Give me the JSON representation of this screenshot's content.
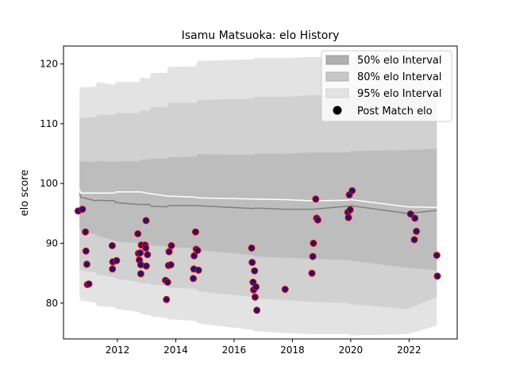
{
  "chart_data": {
    "type": "scatter",
    "title": "Isamu Matsuoka: elo History",
    "xlabel": "",
    "ylabel": "elo score",
    "xlim": [
      2010.15,
      2023.65
    ],
    "ylim": [
      74,
      123
    ],
    "x_ticks": [
      2012,
      2014,
      2016,
      2018,
      2020,
      2022
    ],
    "y_ticks": [
      80,
      90,
      100,
      110,
      120
    ],
    "grid": false,
    "legend": {
      "placement": "top-right",
      "entries": [
        "50% elo Interval",
        "80% elo Interval",
        "95% elo Interval",
        "Post Match elo"
      ]
    },
    "colors": {
      "band95": "#e3e3e3",
      "band80": "#d1d1d1",
      "band50": "#bdbdbd",
      "mean_line": "#808080",
      "median_line": "#ffffff",
      "point_fill": "#191970",
      "point_edge": "#ff0000"
    },
    "bands": {
      "x": [
        2010.7,
        2010.75,
        2011.25,
        2011.3,
        2011.9,
        2011.95,
        2012.75,
        2012.8,
        2013.1,
        2013.15,
        2013.7,
        2013.75,
        2014.7,
        2014.75,
        2016.65,
        2016.7,
        2017.75,
        2018.7,
        2019.9,
        2020.0,
        2021.95,
        2022.95
      ],
      "p95_upper": [
        115.5,
        116.1,
        116.2,
        117.0,
        116.5,
        117.0,
        117.0,
        117.8,
        117.5,
        118.5,
        118.5,
        119.5,
        119.6,
        120.5,
        120.8,
        121.0,
        121.0,
        121.2,
        121.0,
        121.2,
        121.5,
        121.8
      ],
      "p80_upper": [
        110.8,
        111.0,
        111.1,
        111.5,
        111.5,
        111.8,
        111.8,
        112.2,
        112.2,
        112.8,
        112.8,
        113.5,
        113.5,
        114.0,
        114.2,
        114.5,
        114.5,
        114.8,
        114.5,
        114.7,
        114.9,
        115.0
      ],
      "p50_upper": [
        104.0,
        103.7,
        103.6,
        103.8,
        103.6,
        103.7,
        103.7,
        104.0,
        104.0,
        104.2,
        104.1,
        104.4,
        104.5,
        104.9,
        104.8,
        105.0,
        105.0,
        105.2,
        105.2,
        105.4,
        105.6,
        105.8
      ],
      "mean": [
        98.3,
        97.7,
        97.1,
        97.2,
        97.1,
        96.8,
        96.5,
        96.5,
        96.5,
        96.2,
        96.1,
        96.3,
        96.3,
        96.3,
        95.8,
        95.9,
        95.7,
        95.7,
        96.2,
        96.3,
        95.0,
        95.5
      ],
      "median": [
        99.0,
        98.4,
        98.4,
        98.4,
        98.4,
        98.6,
        98.6,
        98.6,
        98.3,
        98.3,
        97.9,
        97.9,
        97.7,
        97.6,
        97.4,
        97.4,
        97.3,
        97.1,
        97.2,
        97.3,
        96.1,
        96.0
      ],
      "p50_lower": [
        92.5,
        92.0,
        91.5,
        91.2,
        90.5,
        90.3,
        90.0,
        89.8,
        89.8,
        89.6,
        89.5,
        89.3,
        89.2,
        88.9,
        88.0,
        87.8,
        87.6,
        87.4,
        87.2,
        87.1,
        85.9,
        85.5
      ],
      "p80_lower": [
        86.0,
        85.5,
        85.1,
        84.8,
        84.3,
        84.1,
        83.5,
        83.3,
        83.3,
        83.1,
        82.9,
        82.6,
        82.4,
        82.0,
        81.0,
        80.8,
        80.5,
        80.2,
        80.0,
        79.8,
        79.0,
        81.0
      ],
      "p95_lower": [
        81.0,
        80.4,
        80.1,
        79.5,
        79.3,
        79.0,
        78.5,
        78.2,
        78.0,
        77.8,
        77.5,
        77.3,
        77.0,
        76.6,
        75.5,
        75.3,
        75.0,
        74.8,
        74.8,
        74.6,
        74.8,
        76.2
      ]
    },
    "series": [
      {
        "name": "Post Match elo",
        "points": [
          [
            2010.65,
            95.4
          ],
          [
            2010.8,
            95.7
          ],
          [
            2010.9,
            91.9
          ],
          [
            2010.92,
            88.7
          ],
          [
            2010.95,
            86.5
          ],
          [
            2010.97,
            83.1
          ],
          [
            2011.02,
            83.2
          ],
          [
            2011.82,
            89.6
          ],
          [
            2011.84,
            86.9
          ],
          [
            2011.83,
            85.7
          ],
          [
            2011.97,
            87.1
          ],
          [
            2012.7,
            91.6
          ],
          [
            2012.72,
            88.3
          ],
          [
            2012.75,
            87.2
          ],
          [
            2012.8,
            86.4
          ],
          [
            2012.78,
            88.4
          ],
          [
            2012.8,
            84.9
          ],
          [
            2012.82,
            89.7
          ],
          [
            2012.95,
            89.7
          ],
          [
            2012.97,
            89.2
          ],
          [
            2012.98,
            93.8
          ],
          [
            2012.99,
            86.2
          ],
          [
            2013.03,
            88.1
          ],
          [
            2013.65,
            83.8
          ],
          [
            2013.68,
            80.6
          ],
          [
            2013.72,
            83.5
          ],
          [
            2013.75,
            86.3
          ],
          [
            2013.77,
            88.6
          ],
          [
            2013.83,
            86.4
          ],
          [
            2013.85,
            89.6
          ],
          [
            2014.6,
            84.1
          ],
          [
            2014.62,
            85.7
          ],
          [
            2014.63,
            87.9
          ],
          [
            2014.68,
            91.9
          ],
          [
            2014.7,
            89.0
          ],
          [
            2014.75,
            88.8
          ],
          [
            2014.78,
            85.5
          ],
          [
            2016.6,
            89.2
          ],
          [
            2016.62,
            86.8
          ],
          [
            2016.65,
            83.5
          ],
          [
            2016.67,
            82.2
          ],
          [
            2016.7,
            85.4
          ],
          [
            2016.72,
            81.0
          ],
          [
            2016.75,
            82.7
          ],
          [
            2016.78,
            78.8
          ],
          [
            2017.75,
            82.3
          ],
          [
            2018.67,
            85.0
          ],
          [
            2018.7,
            87.8
          ],
          [
            2018.72,
            90.0
          ],
          [
            2018.8,
            97.4
          ],
          [
            2018.83,
            94.2
          ],
          [
            2018.87,
            93.9
          ],
          [
            2019.9,
            95.2
          ],
          [
            2019.92,
            94.3
          ],
          [
            2019.95,
            98.1
          ],
          [
            2019.98,
            95.6
          ],
          [
            2020.05,
            98.8
          ],
          [
            2022.05,
            94.9
          ],
          [
            2022.2,
            94.2
          ],
          [
            2022.18,
            90.6
          ],
          [
            2022.25,
            92.0
          ],
          [
            2022.95,
            88.0
          ],
          [
            2022.97,
            84.5
          ]
        ]
      }
    ]
  }
}
